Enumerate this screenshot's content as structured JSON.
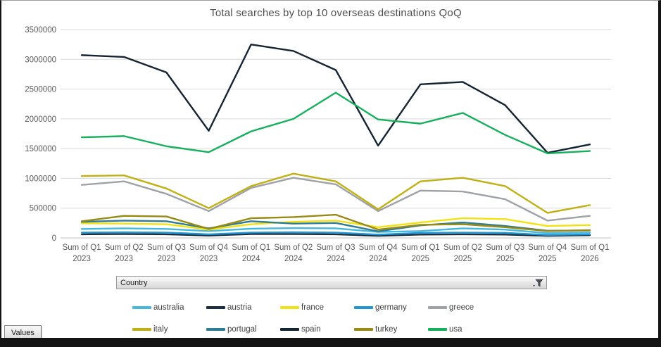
{
  "window": {
    "bottom_bar_color": "#141414"
  },
  "filter": {
    "label": "Country"
  },
  "values_button": {
    "label": "Values"
  },
  "chart_data": {
    "type": "line",
    "title": "Total searches by top 10 overseas destinations QoQ",
    "xlabel": "",
    "ylabel": "",
    "ylim": [
      0,
      3500000
    ],
    "ytick_step": 500000,
    "yticks": [
      0,
      500000,
      1000000,
      1500000,
      2000000,
      2500000,
      3000000,
      3500000
    ],
    "grid": "horizontal",
    "legend_position": "bottom",
    "axis_text_color": "#595959",
    "gridline_color": "#d9d9d9",
    "axisline_color": "#c0c0c0",
    "categories": [
      {
        "top": "Sum of Q1",
        "bottom": "2023"
      },
      {
        "top": "Sum of Q2",
        "bottom": "2023"
      },
      {
        "top": "Sum of Q3",
        "bottom": "2023"
      },
      {
        "top": "Sum of Q4",
        "bottom": "2023"
      },
      {
        "top": "Sum of Q1",
        "bottom": "2024"
      },
      {
        "top": "Sum of Q2",
        "bottom": "2024"
      },
      {
        "top": "Sum of Q3",
        "bottom": "2024"
      },
      {
        "top": "Sum of Q4",
        "bottom": "2024"
      },
      {
        "top": "Sum of Q1",
        "bottom": "2025"
      },
      {
        "top": "Sum of Q2",
        "bottom": "2025"
      },
      {
        "top": "Sum of Q3",
        "bottom": "2025"
      },
      {
        "top": "Sum of Q4",
        "bottom": "2025"
      },
      {
        "top": "Sum of Q1",
        "bottom": "2026"
      }
    ],
    "series": [
      {
        "name": "australia",
        "color": "#45b8de",
        "values": [
          150000,
          160000,
          150000,
          115000,
          155000,
          165000,
          160000,
          100000,
          115000,
          160000,
          140000,
          80000,
          90000
        ]
      },
      {
        "name": "austria",
        "color": "#1b2f40",
        "values": [
          60000,
          65000,
          60000,
          40000,
          65000,
          65000,
          60000,
          35000,
          55000,
          60000,
          55000,
          35000,
          45000
        ]
      },
      {
        "name": "france",
        "color": "#f2e213",
        "values": [
          245000,
          240000,
          230000,
          140000,
          230000,
          270000,
          290000,
          180000,
          260000,
          330000,
          315000,
          200000,
          215000
        ]
      },
      {
        "name": "germany",
        "color": "#2196d5",
        "values": [
          90000,
          95000,
          90000,
          60000,
          90000,
          95000,
          90000,
          55000,
          85000,
          90000,
          85000,
          50000,
          60000
        ]
      },
      {
        "name": "greece",
        "color": "#9ea2a6",
        "values": [
          890000,
          950000,
          740000,
          450000,
          840000,
          1010000,
          900000,
          450000,
          795000,
          780000,
          650000,
          290000,
          370000
        ]
      },
      {
        "name": "italy",
        "color": "#c0b014",
        "values": [
          1040000,
          1050000,
          830000,
          500000,
          870000,
          1080000,
          950000,
          480000,
          950000,
          1010000,
          870000,
          420000,
          550000
        ]
      },
      {
        "name": "portugal",
        "color": "#2e7d95",
        "values": [
          270000,
          290000,
          280000,
          160000,
          280000,
          240000,
          250000,
          110000,
          210000,
          260000,
          200000,
          120000,
          125000
        ]
      },
      {
        "name": "spain",
        "color": "#152432",
        "values": [
          3070000,
          3040000,
          2780000,
          1800000,
          3250000,
          3140000,
          2820000,
          1550000,
          2580000,
          2620000,
          2230000,
          1430000,
          1570000
        ]
      },
      {
        "name": "turkey",
        "color": "#998a15",
        "values": [
          280000,
          370000,
          360000,
          150000,
          330000,
          350000,
          390000,
          140000,
          220000,
          230000,
          180000,
          115000,
          130000
        ]
      },
      {
        "name": "usa",
        "color": "#16b05c",
        "values": [
          1690000,
          1710000,
          1540000,
          1440000,
          1790000,
          2000000,
          2440000,
          1990000,
          1920000,
          2100000,
          1730000,
          1420000,
          1460000
        ]
      }
    ]
  }
}
